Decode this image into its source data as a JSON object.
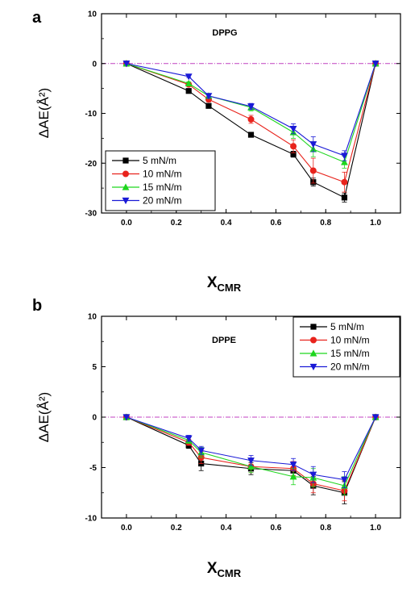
{
  "chart_data": [
    {
      "type": "line",
      "panel_label": "a",
      "title": "DPPG",
      "ylabel": "ΔAE(Å²)",
      "xlabel_main": "X",
      "xlabel_sub": "CMR",
      "xlim": [
        -0.1,
        1.1
      ],
      "ylim": [
        -30,
        10
      ],
      "xticks": [
        "0.0",
        "0.2",
        "0.4",
        "0.6",
        "0.8",
        "1.0"
      ],
      "yticks": [
        "10",
        "0",
        "-10",
        "-20",
        "-30"
      ],
      "legend_position": "bottom-left",
      "reference_line": 0,
      "x": [
        0.0,
        0.25,
        0.33,
        0.5,
        0.67,
        0.75,
        0.875,
        1.0
      ],
      "series": [
        {
          "name": "5  mN/m",
          "color": "#000000",
          "marker": "square",
          "values": [
            0,
            -5.5,
            -8.5,
            -14.3,
            -18.2,
            -23.8,
            -26.9,
            0
          ],
          "errors": [
            0,
            0.3,
            0.4,
            0.4,
            0.6,
            0.8,
            0.9,
            0
          ]
        },
        {
          "name": "10 mN/m",
          "color": "#e8231c",
          "marker": "circle",
          "values": [
            0,
            -4.2,
            -7.2,
            -11.2,
            -16.6,
            -21.5,
            -23.8,
            0
          ],
          "errors": [
            0,
            0.3,
            0.5,
            0.8,
            1.3,
            2.5,
            2.0,
            0
          ]
        },
        {
          "name": "15 mN/m",
          "color": "#1ed61e",
          "marker": "triangle-up",
          "values": [
            0,
            -4.0,
            -6.5,
            -8.8,
            -13.8,
            -17.2,
            -19.8,
            0
          ],
          "errors": [
            0,
            0.3,
            0.5,
            0.7,
            1.2,
            1.5,
            1.2,
            0
          ]
        },
        {
          "name": "20 mN/m",
          "color": "#1a1ad6",
          "marker": "triangle-down",
          "values": [
            0,
            -2.6,
            -6.5,
            -8.6,
            -13.1,
            -16.2,
            -18.5,
            0
          ],
          "errors": [
            0,
            0.2,
            0.4,
            0.6,
            1.0,
            1.5,
            1.0,
            0
          ]
        }
      ]
    },
    {
      "type": "line",
      "panel_label": "b",
      "title": "DPPE",
      "ylabel": "ΔAE(Å²)",
      "xlabel_main": "X",
      "xlabel_sub": "CMR",
      "xlim": [
        -0.1,
        1.1
      ],
      "ylim": [
        -10,
        10
      ],
      "xticks": [
        "0.0",
        "0.2",
        "0.4",
        "0.6",
        "0.8",
        "1.0"
      ],
      "yticks": [
        "10",
        "5",
        "0",
        "-5",
        "-10"
      ],
      "legend_position": "top-right",
      "reference_line": 0,
      "x": [
        0.0,
        0.25,
        0.3,
        0.5,
        0.67,
        0.75,
        0.875,
        1.0
      ],
      "series": [
        {
          "name": "5  mN/m",
          "color": "#000000",
          "marker": "square",
          "values": [
            0,
            -2.8,
            -4.6,
            -5.1,
            -5.3,
            -6.8,
            -7.5,
            0
          ],
          "errors": [
            0,
            0.3,
            0.7,
            0.6,
            0.7,
            0.9,
            1.1,
            0
          ]
        },
        {
          "name": "10 mN/m",
          "color": "#e8231c",
          "marker": "circle",
          "values": [
            0,
            -2.5,
            -4.0,
            -4.9,
            -5.1,
            -6.6,
            -7.3,
            0
          ],
          "errors": [
            0,
            0.3,
            0.6,
            0.6,
            0.7,
            0.9,
            1.0,
            0
          ]
        },
        {
          "name": "15 mN/m",
          "color": "#1ed61e",
          "marker": "triangle-up",
          "values": [
            0,
            -2.3,
            -3.5,
            -4.9,
            -5.9,
            -6.0,
            -6.8,
            0
          ],
          "errors": [
            0,
            0.3,
            0.5,
            0.6,
            0.8,
            0.9,
            0.9,
            0
          ]
        },
        {
          "name": "20 mN/m",
          "color": "#1a1ad6",
          "marker": "triangle-down",
          "values": [
            0,
            -2.1,
            -3.3,
            -4.3,
            -4.7,
            -5.7,
            -6.2,
            0
          ],
          "errors": [
            0,
            0.3,
            0.4,
            0.5,
            0.6,
            0.8,
            0.8,
            0
          ]
        }
      ]
    }
  ]
}
